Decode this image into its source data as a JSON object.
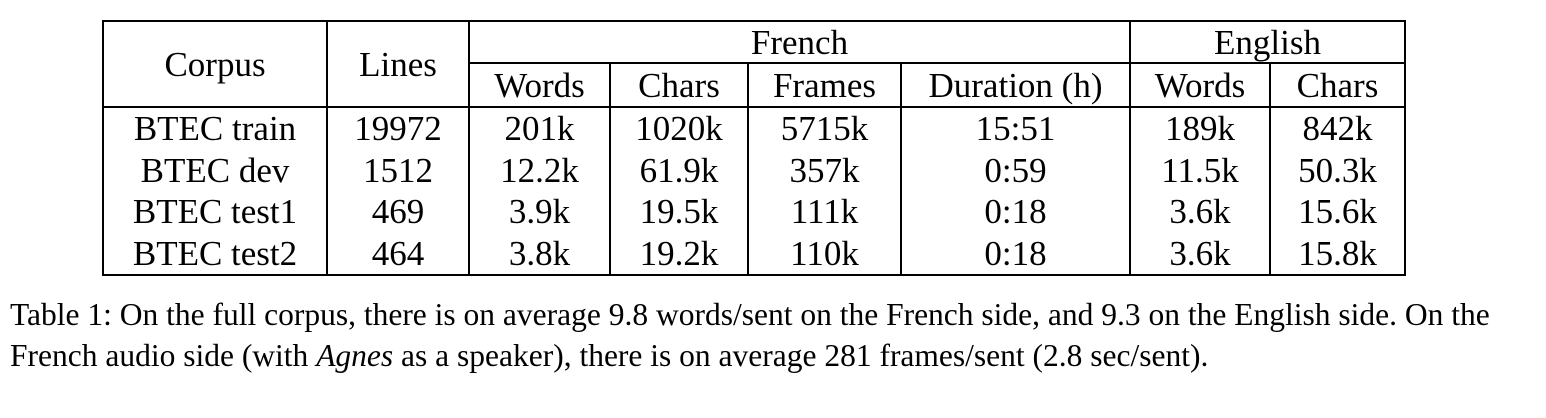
{
  "table": {
    "headers": {
      "corpus": "Corpus",
      "lines": "Lines",
      "french": "French",
      "english": "English",
      "french_sub": [
        "Words",
        "Chars",
        "Frames",
        "Duration (h)"
      ],
      "english_sub": [
        "Words",
        "Chars"
      ]
    },
    "rows": [
      {
        "corpus": "BTEC train",
        "lines": "19972",
        "fr_words": "201k",
        "fr_chars": "1020k",
        "fr_frames": "5715k",
        "fr_duration": "15:51",
        "en_words": "189k",
        "en_chars": "842k"
      },
      {
        "corpus": "BTEC dev",
        "lines": "1512",
        "fr_words": "12.2k",
        "fr_chars": "61.9k",
        "fr_frames": "357k",
        "fr_duration": "0:59",
        "en_words": "11.5k",
        "en_chars": "50.3k"
      },
      {
        "corpus": "BTEC test1",
        "lines": "469",
        "fr_words": "3.9k",
        "fr_chars": "19.5k",
        "fr_frames": "111k",
        "fr_duration": "0:18",
        "en_words": "3.6k",
        "en_chars": "15.6k"
      },
      {
        "corpus": "BTEC test2",
        "lines": "464",
        "fr_words": "3.8k",
        "fr_chars": "19.2k",
        "fr_frames": "110k",
        "fr_duration": "0:18",
        "en_words": "3.6k",
        "en_chars": "15.8k"
      }
    ]
  },
  "caption": {
    "before": "Table 1: On the full corpus, there is on average 9.8 words/sent on the French side, and 9.3 on the English side. On the French audio side (with ",
    "emphasis": "Agnes",
    "after": " as a speaker), there is on average 281 frames/sent (2.8 sec/sent)."
  }
}
